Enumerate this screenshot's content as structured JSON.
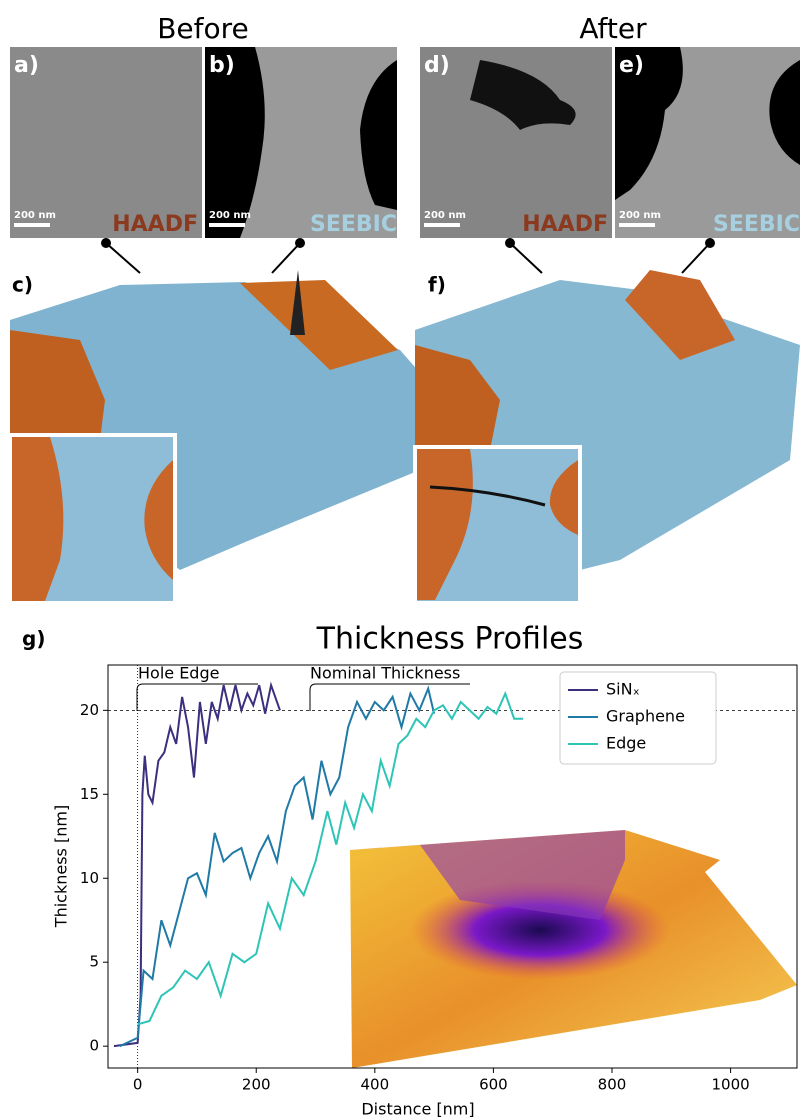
{
  "figure": {
    "before": "Before",
    "after": "After",
    "panels": [
      {
        "label": "a)",
        "scale": "200 nm",
        "detector": "HAADF"
      },
      {
        "label": "b)",
        "scale": "200 nm",
        "detector": "SEEBIC"
      },
      {
        "label": "d)",
        "scale": "200 nm",
        "detector": "HAADF"
      },
      {
        "label": "e)",
        "scale": "200 nm",
        "detector": "SEEBIC"
      }
    ],
    "c_label": "c)",
    "f_label": "f)",
    "g_label": "g)"
  },
  "chart_data": {
    "type": "line",
    "title": "Thickness Profiles",
    "xlabel": "Distance [nm]",
    "ylabel": "Thickness [nm]",
    "annotations": [
      "Hole Edge",
      "Nominal Thickness"
    ],
    "xlim": [
      -50,
      1112
    ],
    "ylim": [
      -1.3,
      22.7
    ],
    "xticks": [
      0,
      200,
      400,
      600,
      800,
      1000
    ],
    "yticks": [
      0,
      5,
      10,
      15,
      20
    ],
    "hline": 20,
    "vline": 0,
    "legend": "upper right",
    "series": [
      {
        "name": "SiNₓ",
        "color": "#3b2f7e",
        "x": [
          -40,
          -20,
          0,
          5,
          8,
          12,
          18,
          25,
          35,
          45,
          55,
          65,
          75,
          85,
          95,
          105,
          115,
          125,
          135,
          145,
          155,
          165,
          175,
          185,
          195,
          205,
          215,
          225,
          240
        ],
        "values": [
          0,
          0.1,
          0.2,
          3,
          15,
          17.3,
          15,
          14.5,
          17,
          17.5,
          19,
          18,
          20.8,
          19,
          16,
          20.5,
          18,
          20.5,
          19.5,
          21.5,
          20,
          21.5,
          20,
          21,
          20.3,
          21.5,
          19.8,
          21.5,
          20
        ]
      },
      {
        "name": "Graphene",
        "color": "#1f7aa6",
        "x": [
          -30,
          0,
          10,
          25,
          40,
          55,
          70,
          85,
          100,
          115,
          130,
          145,
          160,
          175,
          190,
          205,
          220,
          235,
          250,
          265,
          280,
          295,
          310,
          325,
          340,
          355,
          370,
          385,
          400,
          415,
          430,
          445,
          460,
          475,
          490,
          500
        ],
        "values": [
          0,
          0.5,
          4.5,
          4,
          7.5,
          6,
          8,
          10,
          10.3,
          9,
          12.7,
          11,
          11.5,
          11.8,
          10,
          11.5,
          12.5,
          11,
          14,
          15.5,
          16,
          13.5,
          17,
          15,
          16,
          19,
          20.5,
          19.5,
          20.5,
          20,
          20.8,
          19,
          21,
          20,
          21.3,
          19.8
        ]
      },
      {
        "name": "Edge",
        "color": "#2ec4b6",
        "x": [
          0,
          20,
          40,
          60,
          80,
          100,
          120,
          140,
          160,
          180,
          200,
          220,
          240,
          260,
          280,
          300,
          320,
          335,
          350,
          365,
          380,
          395,
          410,
          425,
          440,
          455,
          470,
          485,
          500,
          515,
          530,
          545,
          560,
          575,
          590,
          605,
          620,
          635,
          650
        ],
        "values": [
          1.3,
          1.5,
          3,
          3.5,
          4.5,
          4,
          5,
          3,
          5.5,
          5,
          5.5,
          8.5,
          7,
          10,
          9,
          11,
          14,
          12,
          14.5,
          13,
          15,
          14,
          17,
          15.5,
          18,
          18.5,
          19.5,
          19,
          20,
          20.3,
          19.5,
          20.5,
          20,
          19.5,
          20.2,
          19.8,
          21,
          19.5,
          19.5
        ]
      }
    ]
  }
}
